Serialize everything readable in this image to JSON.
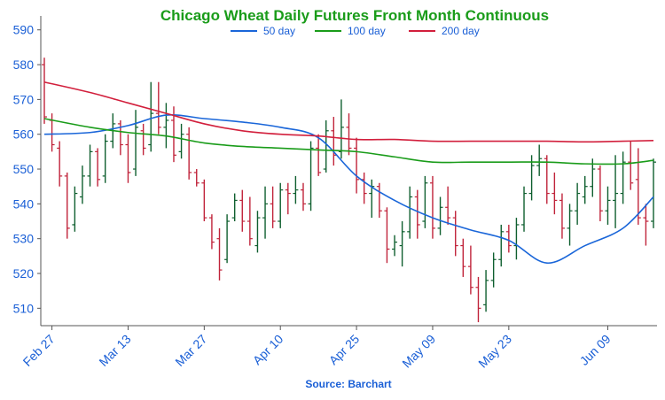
{
  "chart_data": {
    "type": "line",
    "title": "Chicago Wheat Daily Futures Front Month Continuous",
    "source": "Source: Barchart",
    "x_dates": [
      "2022-02-25",
      "2022-02-28",
      "2022-03-01",
      "2022-03-02",
      "2022-03-03",
      "2022-03-04",
      "2022-03-07",
      "2022-03-08",
      "2022-03-09",
      "2022-03-10",
      "2022-03-11",
      "2022-03-14",
      "2022-03-15",
      "2022-03-16",
      "2022-03-17",
      "2022-03-18",
      "2022-03-21",
      "2022-03-22",
      "2022-03-23",
      "2022-03-24",
      "2022-03-25",
      "2022-03-28",
      "2022-03-29",
      "2022-03-30",
      "2022-03-31",
      "2022-04-01",
      "2022-04-04",
      "2022-04-05",
      "2022-04-06",
      "2022-04-07",
      "2022-04-08",
      "2022-04-11",
      "2022-04-12",
      "2022-04-13",
      "2022-04-14",
      "2022-04-15",
      "2022-04-18",
      "2022-04-19",
      "2022-04-20",
      "2022-04-21",
      "2022-04-22",
      "2022-04-25",
      "2022-04-26",
      "2022-04-27",
      "2022-04-28",
      "2022-04-29",
      "2022-05-02",
      "2022-05-03",
      "2022-05-04",
      "2022-05-05",
      "2022-05-06",
      "2022-05-09",
      "2022-05-10",
      "2022-05-11",
      "2022-05-12",
      "2022-05-13",
      "2022-05-16",
      "2022-05-17",
      "2022-05-18",
      "2022-05-19",
      "2022-05-20",
      "2022-05-23",
      "2022-05-24",
      "2022-05-25",
      "2022-05-26",
      "2022-05-27",
      "2022-05-30",
      "2022-05-31",
      "2022-06-01",
      "2022-06-02",
      "2022-06-03",
      "2022-06-06",
      "2022-06-07",
      "2022-06-08",
      "2022-06-09",
      "2022-06-10",
      "2022-06-13",
      "2022-06-14",
      "2022-06-15",
      "2022-06-16",
      "2022-06-17"
    ],
    "x_tick_labels": [
      "Feb 27",
      "Mar 13",
      "Mar 27",
      "Apr 10",
      "Apr 25",
      "May 09",
      "May 23",
      "Jun 09"
    ],
    "ylim": [
      505,
      594
    ],
    "y_ticks": [
      510,
      520,
      530,
      540,
      550,
      560,
      570,
      580,
      590
    ],
    "grid": false,
    "legend_position": "top-center",
    "up_color": "#0f5f2f",
    "down_color": "#c0233a",
    "ohlc": [
      {
        "o": 580,
        "h": 582,
        "l": 563,
        "c": 565
      },
      {
        "o": 564,
        "h": 566,
        "l": 555,
        "c": 557
      },
      {
        "o": 556,
        "h": 558,
        "l": 545,
        "c": 548
      },
      {
        "o": 548,
        "h": 549,
        "l": 530,
        "c": 533
      },
      {
        "o": 534,
        "h": 545,
        "l": 532,
        "c": 543
      },
      {
        "o": 542,
        "h": 551,
        "l": 540,
        "c": 548
      },
      {
        "o": 548,
        "h": 557,
        "l": 545,
        "c": 555
      },
      {
        "o": 555,
        "h": 556,
        "l": 545,
        "c": 547
      },
      {
        "o": 548,
        "h": 560,
        "l": 546,
        "c": 558
      },
      {
        "o": 558,
        "h": 566,
        "l": 556,
        "c": 563
      },
      {
        "o": 563,
        "h": 564,
        "l": 554,
        "c": 557
      },
      {
        "o": 557,
        "h": 560,
        "l": 546,
        "c": 549
      },
      {
        "o": 550,
        "h": 567,
        "l": 548,
        "c": 562
      },
      {
        "o": 561,
        "h": 563,
        "l": 554,
        "c": 556
      },
      {
        "o": 557,
        "h": 575,
        "l": 555,
        "c": 566
      },
      {
        "o": 566,
        "h": 575,
        "l": 560,
        "c": 562
      },
      {
        "o": 562,
        "h": 569,
        "l": 556,
        "c": 564
      },
      {
        "o": 564,
        "h": 568,
        "l": 552,
        "c": 554
      },
      {
        "o": 555,
        "h": 563,
        "l": 553,
        "c": 560
      },
      {
        "o": 560,
        "h": 562,
        "l": 547,
        "c": 549
      },
      {
        "o": 549,
        "h": 550,
        "l": 545,
        "c": 546
      },
      {
        "o": 546,
        "h": 547,
        "l": 535,
        "c": 536
      },
      {
        "o": 536,
        "h": 537,
        "l": 527,
        "c": 529
      },
      {
        "o": 530,
        "h": 533,
        "l": 518,
        "c": 521
      },
      {
        "o": 524,
        "h": 537,
        "l": 523,
        "c": 535
      },
      {
        "o": 536,
        "h": 543,
        "l": 535,
        "c": 541
      },
      {
        "o": 541,
        "h": 544,
        "l": 532,
        "c": 535
      },
      {
        "o": 535,
        "h": 542,
        "l": 528,
        "c": 530
      },
      {
        "o": 528,
        "h": 538,
        "l": 526,
        "c": 536
      },
      {
        "o": 536,
        "h": 545,
        "l": 530,
        "c": 540
      },
      {
        "o": 540,
        "h": 545,
        "l": 533,
        "c": 535
      },
      {
        "o": 535,
        "h": 546,
        "l": 533,
        "c": 544
      },
      {
        "o": 544,
        "h": 546,
        "l": 537,
        "c": 543
      },
      {
        "o": 543,
        "h": 548,
        "l": 540,
        "c": 544
      },
      {
        "o": 544,
        "h": 546,
        "l": 538,
        "c": 540
      },
      {
        "o": 540,
        "h": 558,
        "l": 538,
        "c": 556
      },
      {
        "o": 556,
        "h": 560,
        "l": 548,
        "c": 549
      },
      {
        "o": 550,
        "h": 564,
        "l": 549,
        "c": 561
      },
      {
        "o": 561,
        "h": 565,
        "l": 551,
        "c": 554
      },
      {
        "o": 555,
        "h": 570,
        "l": 553,
        "c": 562
      },
      {
        "o": 562,
        "h": 566,
        "l": 554,
        "c": 556
      },
      {
        "o": 556,
        "h": 559,
        "l": 543,
        "c": 547
      },
      {
        "o": 547,
        "h": 549,
        "l": 540,
        "c": 543
      },
      {
        "o": 543,
        "h": 547,
        "l": 536,
        "c": 545
      },
      {
        "o": 545,
        "h": 546,
        "l": 536,
        "c": 538
      },
      {
        "o": 538,
        "h": 539,
        "l": 523,
        "c": 527
      },
      {
        "o": 527,
        "h": 531,
        "l": 525,
        "c": 529
      },
      {
        "o": 528,
        "h": 535,
        "l": 522,
        "c": 532
      },
      {
        "o": 532,
        "h": 545,
        "l": 530,
        "c": 542
      },
      {
        "o": 542,
        "h": 544,
        "l": 530,
        "c": 534
      },
      {
        "o": 535,
        "h": 548,
        "l": 533,
        "c": 546
      },
      {
        "o": 546,
        "h": 548,
        "l": 530,
        "c": 533
      },
      {
        "o": 533,
        "h": 542,
        "l": 531,
        "c": 539
      },
      {
        "o": 539,
        "h": 545,
        "l": 534,
        "c": 536
      },
      {
        "o": 536,
        "h": 538,
        "l": 525,
        "c": 528
      },
      {
        "o": 528,
        "h": 530,
        "l": 519,
        "c": 522
      },
      {
        "o": 522,
        "h": 528,
        "l": 514,
        "c": 516
      },
      {
        "o": 516,
        "h": 519,
        "l": 506,
        "c": 510
      },
      {
        "o": 511,
        "h": 521,
        "l": 509,
        "c": 518
      },
      {
        "o": 518,
        "h": 526,
        "l": 516,
        "c": 524
      },
      {
        "o": 524,
        "h": 534,
        "l": 522,
        "c": 532
      },
      {
        "o": 532,
        "h": 534,
        "l": 526,
        "c": 528
      },
      {
        "o": 528,
        "h": 536,
        "l": 524,
        "c": 534
      },
      {
        "o": 534,
        "h": 545,
        "l": 532,
        "c": 543
      },
      {
        "o": 543,
        "h": 554,
        "l": 541,
        "c": 551
      },
      {
        "o": 551,
        "h": 557,
        "l": 548,
        "c": 553
      },
      {
        "o": 553,
        "h": 554,
        "l": 540,
        "c": 543
      },
      {
        "o": 543,
        "h": 549,
        "l": 537,
        "c": 541
      },
      {
        "o": 541,
        "h": 543,
        "l": 530,
        "c": 533
      },
      {
        "o": 533,
        "h": 540,
        "l": 528,
        "c": 538
      },
      {
        "o": 538,
        "h": 546,
        "l": 534,
        "c": 543
      },
      {
        "o": 542,
        "h": 548,
        "l": 540,
        "c": 545
      },
      {
        "o": 545,
        "h": 553,
        "l": 542,
        "c": 550
      },
      {
        "o": 550,
        "h": 551,
        "l": 535,
        "c": 538
      },
      {
        "o": 538,
        "h": 545,
        "l": 534,
        "c": 541
      },
      {
        "o": 541,
        "h": 554,
        "l": 533,
        "c": 543
      },
      {
        "o": 543,
        "h": 555,
        "l": 540,
        "c": 552
      },
      {
        "o": 552,
        "h": 558,
        "l": 544,
        "c": 546
      },
      {
        "o": 547,
        "h": 556,
        "l": 534,
        "c": 536
      },
      {
        "o": 536,
        "h": 540,
        "l": 528,
        "c": 535
      },
      {
        "o": 535,
        "h": 553,
        "l": 533,
        "c": 552
      }
    ],
    "series": [
      {
        "name": "50 day",
        "color": "#1a66d9",
        "x_dates": [
          "2022-02-25",
          "2022-03-07",
          "2022-03-14",
          "2022-03-21",
          "2022-03-28",
          "2022-04-04",
          "2022-04-11",
          "2022-04-18",
          "2022-04-25",
          "2022-05-02",
          "2022-05-09",
          "2022-05-16",
          "2022-05-23",
          "2022-05-30",
          "2022-06-06",
          "2022-06-13",
          "2022-06-17"
        ],
        "values": [
          560,
          560.5,
          562.5,
          565.5,
          564.5,
          563.5,
          562,
          559,
          548,
          541,
          536,
          532.5,
          529.5,
          523,
          528,
          533,
          542
        ]
      },
      {
        "name": "100 day",
        "color": "#1a9c1a",
        "x_dates": [
          "2022-02-25",
          "2022-03-07",
          "2022-03-14",
          "2022-03-21",
          "2022-03-28",
          "2022-04-04",
          "2022-04-11",
          "2022-04-18",
          "2022-04-25",
          "2022-05-02",
          "2022-05-09",
          "2022-05-16",
          "2022-05-23",
          "2022-05-30",
          "2022-06-06",
          "2022-06-13",
          "2022-06-17"
        ],
        "values": [
          564.5,
          562,
          560.5,
          559.5,
          557.5,
          556.5,
          556,
          555.5,
          555,
          553.5,
          552,
          552,
          552,
          552,
          551.5,
          551.5,
          552.5
        ]
      },
      {
        "name": "200 day",
        "color": "#d21f3c",
        "x_dates": [
          "2022-02-25",
          "2022-03-07",
          "2022-03-14",
          "2022-03-21",
          "2022-03-28",
          "2022-04-04",
          "2022-04-11",
          "2022-04-18",
          "2022-04-25",
          "2022-05-02",
          "2022-05-09",
          "2022-05-16",
          "2022-05-23",
          "2022-05-30",
          "2022-06-06",
          "2022-06-13",
          "2022-06-17"
        ],
        "values": [
          575,
          572,
          569,
          566,
          563,
          561,
          560,
          559.5,
          558.5,
          558.5,
          558,
          558,
          558,
          558,
          557.8,
          558,
          558.2
        ]
      }
    ]
  }
}
